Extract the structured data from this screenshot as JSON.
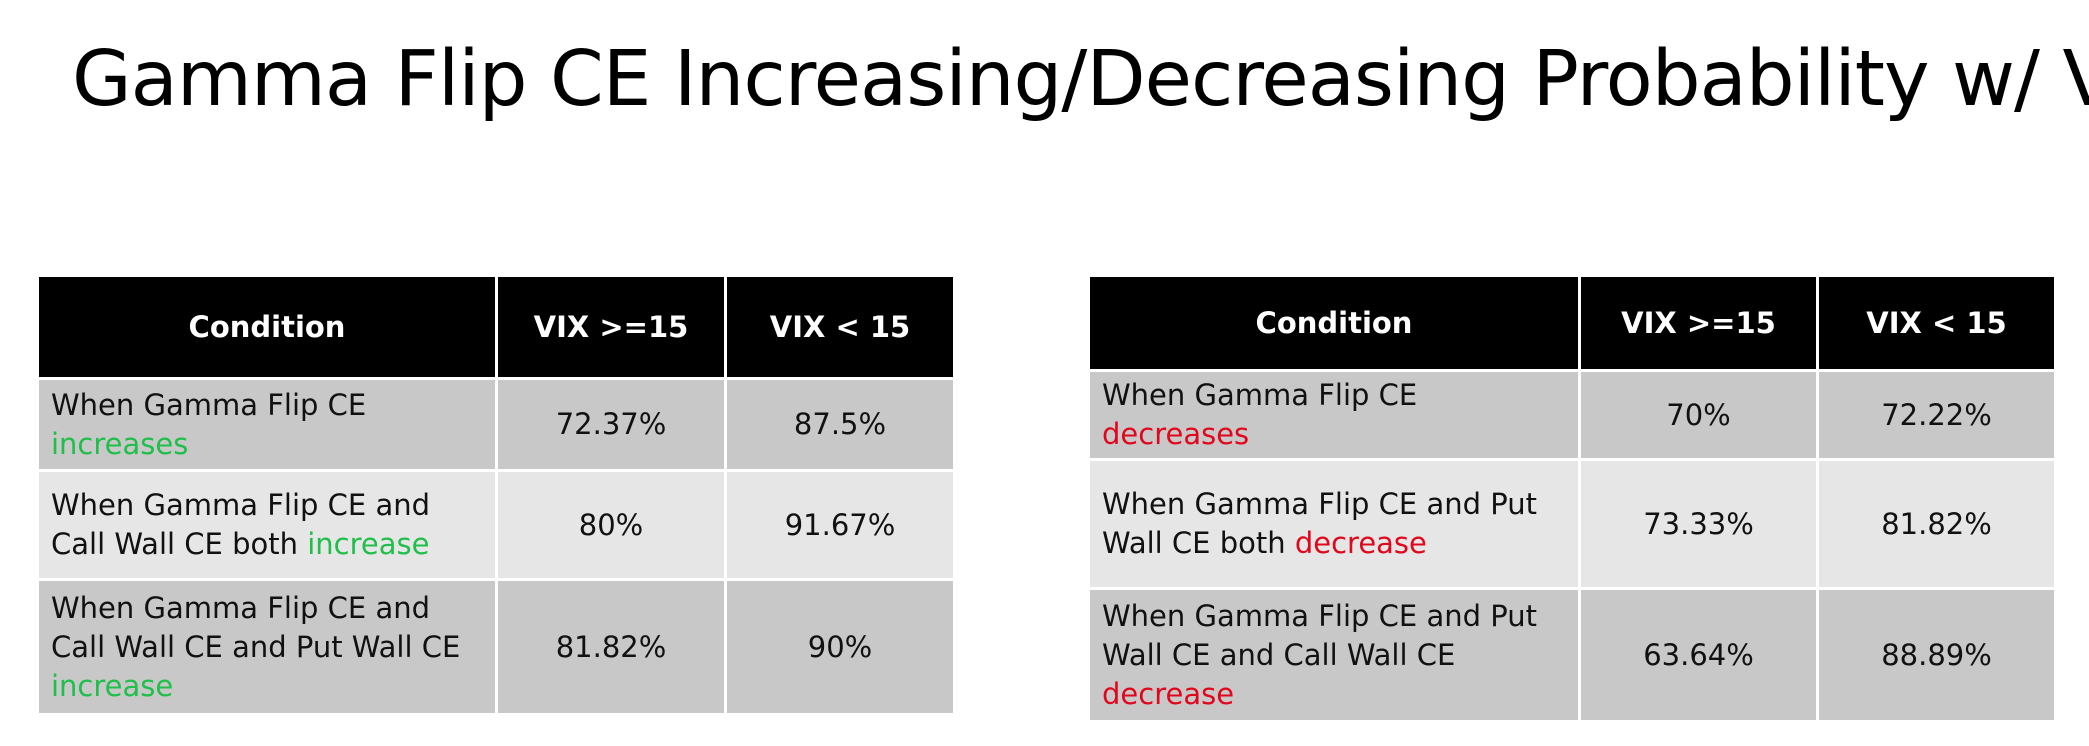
{
  "slide": {
    "title": "Gamma Flip CE Increasing/Decreasing Probability w/ VIX"
  },
  "colors": {
    "header_bg": "#000000",
    "header_text": "#ffffff",
    "row_dark": "#c8c8c8",
    "row_light": "#e6e6e6",
    "increase_green": "#1fbf4a",
    "decrease_red": "#e0061c"
  },
  "left_table": {
    "headers": [
      "Condition",
      "VIX  >=15",
      "VIX < 15"
    ],
    "rows": [
      {
        "condition_prefix": "When Gamma Flip CE",
        "condition_highlight": "increases",
        "vix_ge_15": "72.37%",
        "vix_lt_15": "87.5%"
      },
      {
        "condition_prefix": "When Gamma Flip CE and Call Wall CE both",
        "condition_highlight": "increase",
        "vix_ge_15": "80%",
        "vix_lt_15": "91.67%"
      },
      {
        "condition_prefix": "When Gamma Flip CE and Call Wall CE and Put Wall CE",
        "condition_highlight": "increase",
        "vix_ge_15": "81.82%",
        "vix_lt_15": "90%"
      }
    ]
  },
  "right_table": {
    "headers": [
      "Condition",
      "VIX  >=15",
      "VIX < 15"
    ],
    "rows": [
      {
        "condition_prefix": "When Gamma Flip CE",
        "condition_highlight": "decreases",
        "vix_ge_15": "70%",
        "vix_lt_15": "72.22%"
      },
      {
        "condition_prefix": "When Gamma Flip CE and Put Wall CE both",
        "condition_highlight": "decrease",
        "vix_ge_15": "73.33%",
        "vix_lt_15": "81.82%"
      },
      {
        "condition_prefix": "When Gamma Flip CE and Put Wall CE and Call Wall CE",
        "condition_highlight": "decrease",
        "vix_ge_15": "63.64%",
        "vix_lt_15": "88.89%"
      }
    ]
  }
}
